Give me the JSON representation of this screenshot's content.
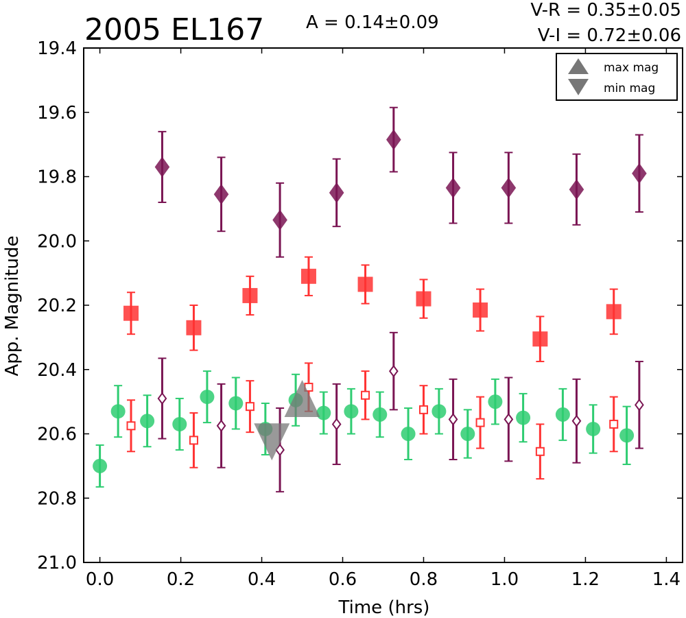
{
  "chart_data": {
    "type": "scatter",
    "title": "2005 EL167",
    "xlabel": "Time (hrs)",
    "ylabel": "App. Magnitude",
    "xlim": [
      -0.04,
      1.44
    ],
    "ylim": [
      21.0,
      19.4
    ],
    "y_inverted": true,
    "xticks": [
      "0.0",
      "0.2",
      "0.4",
      "0.6",
      "0.8",
      "1.0",
      "1.2",
      "1.4"
    ],
    "xtick_values": [
      0.0,
      0.2,
      0.4,
      0.6,
      0.8,
      1.0,
      1.2,
      1.4
    ],
    "yticks": [
      "19.4",
      "19.6",
      "19.8",
      "20.0",
      "20.2",
      "20.4",
      "20.6",
      "20.8",
      "21.0"
    ],
    "ytick_values": [
      19.4,
      19.6,
      19.8,
      20.0,
      20.2,
      20.4,
      20.6,
      20.8,
      21.0
    ],
    "grid": false,
    "annotations": {
      "amplitude": "A  = 0.14±0.09",
      "v_r": "V-R = 0.35±0.05",
      "v_i": "V-I  = 0.72±0.06"
    },
    "legend": {
      "placement": "top-right",
      "entries": [
        {
          "label": "max mag",
          "marker": "triangle-up"
        },
        {
          "label": "min mag",
          "marker": "triangle-down"
        }
      ]
    },
    "colors": {
      "green": "#2ecc71",
      "red": "#ff3333",
      "purple": "#7a1553",
      "gray": "#777777"
    },
    "series": [
      {
        "marker": "circle",
        "color": "#2ecc71",
        "x": [
          0.0,
          0.045,
          0.117,
          0.197,
          0.265,
          0.336,
          0.409,
          0.484,
          0.553,
          0.621,
          0.692,
          0.762,
          0.838,
          0.909,
          0.977,
          1.046,
          1.144,
          1.219,
          1.302
        ],
        "y": [
          20.7,
          20.53,
          20.56,
          20.57,
          20.485,
          20.505,
          20.585,
          20.495,
          20.535,
          20.53,
          20.54,
          20.6,
          20.53,
          20.6,
          20.5,
          20.55,
          20.54,
          20.585,
          20.605
        ],
        "err": [
          0.065,
          0.08,
          0.08,
          0.08,
          0.08,
          0.08,
          0.08,
          0.08,
          0.065,
          0.07,
          0.07,
          0.08,
          0.07,
          0.075,
          0.07,
          0.075,
          0.08,
          0.075,
          0.09
        ]
      },
      {
        "marker": "square-open",
        "color": "#ff3333",
        "x": [
          0.077,
          0.232,
          0.371,
          0.516,
          0.656,
          0.8,
          0.94,
          1.088,
          1.27
        ],
        "y": [
          20.575,
          20.62,
          20.515,
          20.455,
          20.48,
          20.525,
          20.565,
          20.655,
          20.57
        ],
        "err": [
          0.08,
          0.085,
          0.08,
          0.075,
          0.075,
          0.075,
          0.08,
          0.085,
          0.085
        ]
      },
      {
        "marker": "diamond-open",
        "color": "#7a1553",
        "x": [
          0.154,
          0.3,
          0.445,
          0.585,
          0.726,
          0.873,
          1.01,
          1.178,
          1.333
        ],
        "y": [
          20.49,
          20.575,
          20.65,
          20.57,
          20.405,
          20.555,
          20.555,
          20.56,
          20.51
        ],
        "err": [
          0.125,
          0.13,
          0.13,
          0.125,
          0.12,
          0.125,
          0.13,
          0.13,
          0.135
        ]
      },
      {
        "marker": "square",
        "color": "#ff3333",
        "x": [
          0.077,
          0.232,
          0.371,
          0.516,
          0.656,
          0.8,
          0.94,
          1.088,
          1.27
        ],
        "y": [
          20.225,
          20.27,
          20.17,
          20.11,
          20.135,
          20.18,
          20.215,
          20.305,
          20.22
        ],
        "err": [
          0.065,
          0.07,
          0.06,
          0.06,
          0.06,
          0.06,
          0.065,
          0.07,
          0.07
        ]
      },
      {
        "marker": "diamond",
        "color": "#7a1553",
        "x": [
          0.154,
          0.3,
          0.445,
          0.585,
          0.726,
          0.873,
          1.01,
          1.178,
          1.333
        ],
        "y": [
          19.77,
          19.855,
          19.935,
          19.85,
          19.685,
          19.835,
          19.835,
          19.84,
          19.79
        ],
        "err": [
          0.11,
          0.115,
          0.115,
          0.105,
          0.1,
          0.11,
          0.11,
          0.11,
          0.12
        ]
      }
    ],
    "extrema": [
      {
        "label": "max mag",
        "marker": "triangle-up",
        "x": 0.5,
        "y": 20.49
      },
      {
        "label": "min mag",
        "marker": "triangle-down",
        "x": 0.425,
        "y": 20.625
      }
    ]
  }
}
